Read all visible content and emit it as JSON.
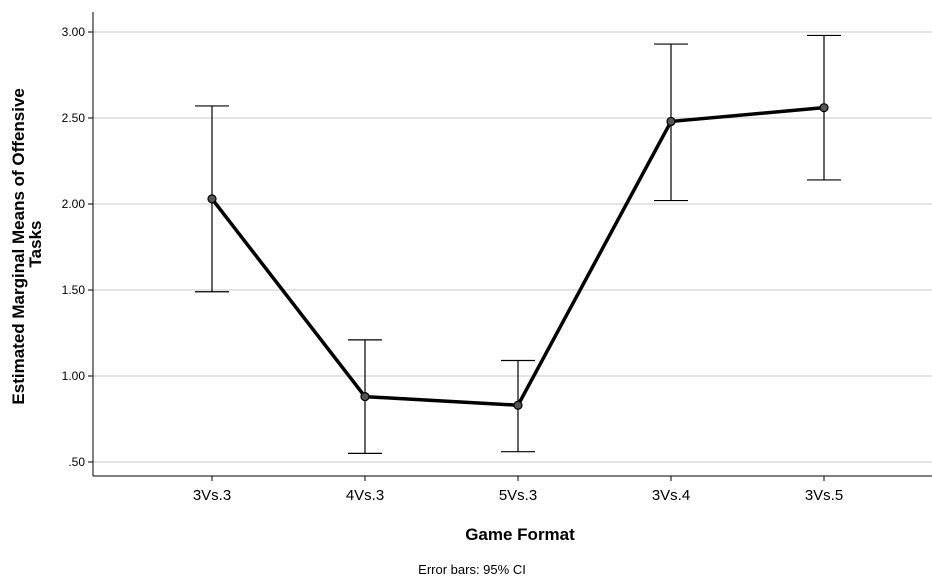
{
  "chart_data": {
    "type": "line",
    "categories": [
      "3Vs.3",
      "4Vs.3",
      "5Vs.3",
      "3Vs.4",
      "3Vs.5"
    ],
    "values": [
      2.03,
      0.88,
      0.83,
      2.48,
      2.56
    ],
    "error_bars": {
      "lower": [
        1.49,
        0.55,
        0.56,
        2.02,
        2.14
      ],
      "upper": [
        2.57,
        1.21,
        1.09,
        2.93,
        2.98
      ]
    },
    "y_ticks": [
      0.5,
      1.0,
      1.5,
      2.0,
      2.5,
      3.0
    ],
    "y_tick_labels": [
      ".50",
      "1.00",
      "1.50",
      "2.00",
      "2.50",
      "3.00"
    ],
    "ylim": [
      0.42,
      3.12
    ],
    "xlabel": "Game Format",
    "ylabel_lines": [
      "Estimated Marginal Means of Offensive",
      "Tasks"
    ],
    "footnote": "Error bars: 95% CI",
    "grid": "horizontal",
    "line_color": "#000000",
    "marker_color": "#555555",
    "grid_color": "#c8c8c8"
  }
}
